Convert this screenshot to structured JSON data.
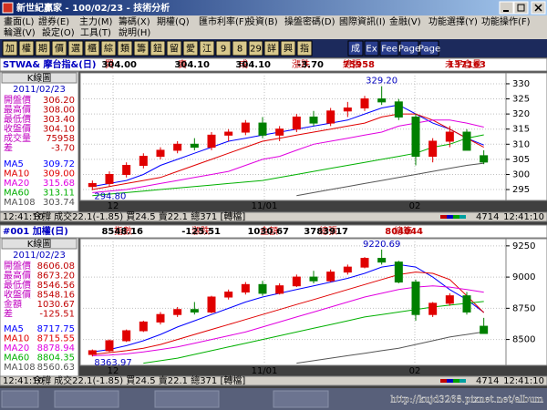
{
  "window": {
    "title": "新世紀贏家 - 100/02/23 - 技術分析"
  },
  "menu": {
    "row1": [
      "畫面(L)",
      "證券(E)",
      "主力(M)",
      "籌碼(X)",
      "期權(Q)",
      "匯市利率(F)",
      "投資(B)",
      "操盤密碼(D)",
      "國際資訊(I)",
      "金融(V)",
      "功能選擇(Y)",
      "功能操作(F)"
    ],
    "row2": [
      "輪選(V)",
      "設定(O)",
      "工具(T)",
      "說明(H)"
    ]
  },
  "toolbar": [
    "加",
    "權",
    "期",
    "價",
    "選",
    "櫃",
    "綜",
    "類",
    "籌",
    "鈕",
    "留",
    "愛",
    "江",
    "9",
    "8",
    "29",
    "詳",
    "興",
    "指",
    "成",
    "Ex",
    "Fee",
    "Page",
    "Page"
  ],
  "panels": [
    {
      "symbol": "STWA& 摩台指&(日)",
      "quote": [
        {
          "label": "買",
          "value": "304.00"
        },
        {
          "label": "賣",
          "value": "304.10"
        },
        {
          "label": "成",
          "value": "304.10"
        },
        {
          "label": "漲跌",
          "value": "-3.70"
        },
        {
          "label": "總張",
          "value": "75958"
        },
        {
          "label": "未平倉量",
          "value": "137163"
        }
      ],
      "info": {
        "title": "K線圖",
        "date": "2011/02/23",
        "rows": [
          [
            "開盤價",
            "306.20"
          ],
          [
            "最高價",
            "308.00"
          ],
          [
            "最低價",
            "303.40"
          ],
          [
            "收盤價",
            "304.10"
          ],
          [
            "成交量",
            "75958"
          ],
          [
            "差",
            "-3.70"
          ]
        ],
        "ma": [
          [
            "MA5",
            "309.72"
          ],
          [
            "MA10",
            "309.00"
          ],
          [
            "MA20",
            "315.68"
          ],
          [
            "MA60",
            "313.11"
          ],
          [
            "MA108",
            "303.74"
          ]
        ]
      },
      "chart": {
        "ylim": [
          292,
          333
        ],
        "yticks": [
          295,
          300,
          305,
          310,
          315,
          320,
          325,
          330
        ],
        "xlabels": [
          "12",
          "11/01",
          "02"
        ],
        "annotations": [
          "329.20",
          "294.80"
        ],
        "candles": [
          [
            296,
            298,
            294.8,
            297
          ],
          [
            297,
            301,
            296,
            300
          ],
          [
            300,
            304,
            299,
            303
          ],
          [
            303,
            307,
            302,
            306
          ],
          [
            306,
            309,
            305,
            308
          ],
          [
            308,
            311,
            307,
            310
          ],
          [
            310,
            312,
            308,
            309
          ],
          [
            309,
            314,
            308,
            313
          ],
          [
            313,
            315,
            311,
            314
          ],
          [
            314,
            318,
            313,
            317
          ],
          [
            317,
            319,
            312,
            313
          ],
          [
            313,
            316,
            311,
            315
          ],
          [
            315,
            320,
            314,
            319
          ],
          [
            319,
            321,
            316,
            317
          ],
          [
            317,
            322,
            316,
            321
          ],
          [
            321,
            324,
            319,
            322
          ],
          [
            322,
            326,
            321,
            325
          ],
          [
            325,
            329.2,
            323,
            324
          ],
          [
            324,
            325,
            318,
            319
          ],
          [
            319,
            320,
            303,
            306
          ],
          [
            306,
            312,
            304,
            311
          ],
          [
            311,
            316,
            309,
            314
          ],
          [
            314,
            315,
            308,
            308
          ],
          [
            306.2,
            308,
            303.4,
            304.1
          ]
        ],
        "ma_lines": [
          {
            "color": "#0000ff",
            "values": [
              296,
              297,
              298,
              300,
              303,
              305,
              307,
              309,
              311,
              312,
              313,
              314,
              315,
              316,
              317,
              318,
              320,
              322,
              323,
              320,
              317,
              315,
              312,
              309.72
            ]
          },
          {
            "color": "#e00000",
            "values": [
              295,
              296,
              297,
              298,
              299,
              301,
              303,
              305,
              307,
              309,
              311,
              312,
              313,
              314,
              315,
              316,
              317,
              319,
              320,
              320,
              318,
              315,
              312,
              309
            ]
          },
          {
            "color": "#e000e0",
            "values": [
              294,
              294.5,
              295,
              296,
              297,
              298,
              299,
              300,
              301,
              303,
              305,
              306,
              308,
              310,
              311,
              312,
              313,
              314,
              316,
              317,
              318,
              318,
              317,
              315.68
            ]
          },
          {
            "color": "#00b000",
            "values": [
              293,
              293.5,
              294,
              294.5,
              295,
              295.5,
              296,
              296.5,
              297,
              297.5,
              298,
              299,
              300,
              301,
              302,
              303,
              304,
              305,
              306,
              307,
              309,
              310,
              312,
              313.11
            ]
          },
          {
            "color": "#555555",
            "values": [
              null,
              null,
              null,
              null,
              null,
              null,
              null,
              null,
              null,
              null,
              null,
              null,
              293,
              294,
              295,
              296,
              297,
              298,
              299,
              300,
              301,
              302,
              303,
              303.74
            ]
          }
        ]
      },
      "status": [
        "12:41:10",
        "今撐 成交22.1(-1.85) 買24.5 賣22.1 總371 [轉檔]",
        "4714",
        "12:41:10"
      ]
    },
    {
      "symbol": "#001 加權(日)",
      "quote": [
        {
          "label": "指數",
          "value": "8548.16"
        },
        {
          "label": "漲跌",
          "value": "-125.51"
        },
        {
          "label": "金額",
          "value": "1030.67"
        },
        {
          "label": "總張",
          "value": "3783917"
        },
        {
          "label": "總筆",
          "value": "804044"
        }
      ],
      "info": {
        "title": "K線圖",
        "date": "2011/02/23",
        "rows": [
          [
            "開盤價",
            "8606.08"
          ],
          [
            "最高價",
            "8673.20"
          ],
          [
            "最低價",
            "8546.56"
          ],
          [
            "收盤價",
            "8548.16"
          ],
          [
            "金額",
            "1030.67"
          ],
          [
            "差",
            "-125.51"
          ]
        ],
        "ma": [
          [
            "MA5",
            "8717.75"
          ],
          [
            "MA10",
            "8715.55"
          ],
          [
            "MA20",
            "8878.94"
          ],
          [
            "MA60",
            "8804.35"
          ],
          [
            "MA108",
            "8560.63"
          ]
        ]
      },
      "chart": {
        "ylim": [
          8300,
          9300
        ],
        "yticks": [
          8500,
          8750,
          9000,
          9250
        ],
        "xlabels": [
          "12",
          "11/01",
          "02"
        ],
        "annotations": [
          "9220.69",
          "8363.97"
        ],
        "candles": [
          [
            8380,
            8420,
            8363.97,
            8410
          ],
          [
            8410,
            8500,
            8400,
            8490
          ],
          [
            8490,
            8580,
            8480,
            8570
          ],
          [
            8570,
            8650,
            8560,
            8640
          ],
          [
            8640,
            8720,
            8620,
            8700
          ],
          [
            8700,
            8760,
            8680,
            8740
          ],
          [
            8740,
            8800,
            8700,
            8720
          ],
          [
            8720,
            8850,
            8710,
            8840
          ],
          [
            8840,
            8900,
            8820,
            8880
          ],
          [
            8880,
            8960,
            8860,
            8940
          ],
          [
            8940,
            8970,
            8850,
            8870
          ],
          [
            8870,
            8950,
            8860,
            8930
          ],
          [
            8930,
            9020,
            8920,
            9000
          ],
          [
            9000,
            9050,
            8950,
            8970
          ],
          [
            8970,
            9060,
            8960,
            9040
          ],
          [
            9040,
            9100,
            9020,
            9080
          ],
          [
            9080,
            9160,
            9070,
            9150
          ],
          [
            9150,
            9220.69,
            9100,
            9120
          ],
          [
            9120,
            9130,
            8950,
            8960
          ],
          [
            8960,
            8980,
            8650,
            8700
          ],
          [
            8700,
            8800,
            8680,
            8790
          ],
          [
            8790,
            8870,
            8770,
            8850
          ],
          [
            8850,
            8880,
            8700,
            8720
          ],
          [
            8606.08,
            8673.2,
            8546.56,
            8548.16
          ]
        ],
        "ma_lines": [
          {
            "color": "#0000ff",
            "values": [
              8400,
              8420,
              8450,
              8490,
              8540,
              8600,
              8650,
              8700,
              8750,
              8800,
              8840,
              8870,
              8900,
              8930,
              8960,
              8990,
              9030,
              9080,
              9100,
              9080,
              9000,
              8900,
              8820,
              8717.75
            ]
          },
          {
            "color": "#e00000",
            "values": [
              8380,
              8395,
              8410,
              8430,
              8460,
              8500,
              8540,
              8580,
              8620,
              8660,
              8700,
              8740,
              8780,
              8820,
              8860,
              8900,
              8940,
              8980,
              9020,
              9040,
              9030,
              8980,
              8850,
              8715.55
            ]
          },
          {
            "color": "#e000e0",
            "values": [
              8370,
              8375,
              8385,
              8400,
              8420,
              8440,
              8470,
              8500,
              8530,
              8560,
              8600,
              8640,
              8680,
              8720,
              8760,
              8800,
              8840,
              8870,
              8900,
              8920,
              8930,
              8920,
              8900,
              8878.94
            ]
          },
          {
            "color": "#00b000",
            "values": [
              null,
              null,
              null,
              8310,
              8330,
              8350,
              8380,
              8410,
              8440,
              8470,
              8500,
              8530,
              8560,
              8590,
              8620,
              8650,
              8680,
              8700,
              8720,
              8740,
              8760,
              8775,
              8790,
              8804.35
            ]
          },
          {
            "color": "#555555",
            "values": [
              null,
              null,
              null,
              null,
              null,
              null,
              null,
              null,
              null,
              null,
              null,
              null,
              8310,
              8330,
              8350,
              8370,
              8390,
              8410,
              8430,
              8460,
              8490,
              8520,
              8540,
              8560.63
            ]
          }
        ]
      },
      "status": [
        "12:41:10",
        "今撐 成交22.1(-1.85) 買24.5 賣22.1 總371 [轉檔]",
        "4714",
        "12:41:10"
      ]
    }
  ],
  "taskbar": {
    "url": "http://kujd3268.pixnet.net/album"
  }
}
